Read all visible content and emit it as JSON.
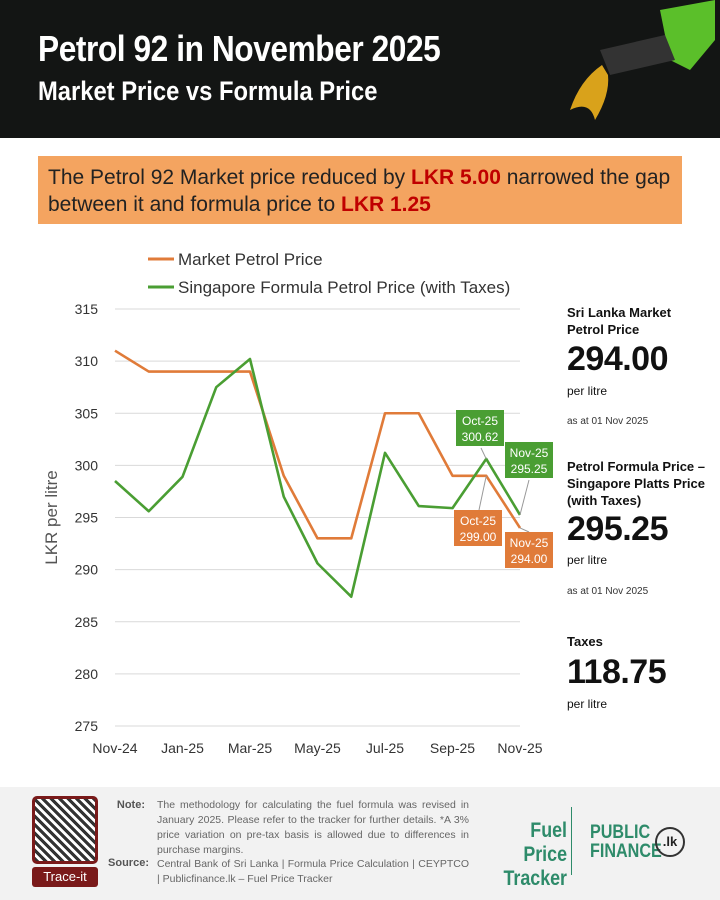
{
  "header": {
    "title": "Petrol 92 in November 2025",
    "subtitle": "Market Price vs Formula Price"
  },
  "banner": {
    "pre": "The Petrol 92 Market price reduced by ",
    "amount1": "LKR 5.00",
    "mid": " narrowed the gap between it and formula price to ",
    "amount2": "LKR 1.25"
  },
  "chart_data": {
    "type": "line",
    "ylabel": "LKR per litre",
    "ylim": [
      275,
      315
    ],
    "yticks": [
      275,
      280,
      285,
      290,
      295,
      300,
      305,
      310,
      315
    ],
    "grid": true,
    "legend_position": "top",
    "categories": [
      "Nov-24",
      "Dec-24",
      "Jan-25",
      "Feb-25",
      "Mar-25",
      "Apr-25",
      "May-25",
      "Jun-25",
      "Jul-25",
      "Aug-25",
      "Sep-25",
      "Oct-25",
      "Nov-25"
    ],
    "xtick_labels": [
      "Nov-24",
      "Jan-25",
      "Mar-25",
      "May-25",
      "Jul-25",
      "Sep-25",
      "Nov-25"
    ],
    "series": [
      {
        "name": "Market Petrol Price",
        "color": "#e07b39",
        "values": [
          311,
          309,
          309,
          309,
          309,
          299,
          293,
          293,
          305,
          305,
          299,
          299,
          294
        ]
      },
      {
        "name": "Singapore Formula Petrol Price (with Taxes)",
        "color": "#4a9e33",
        "values": [
          298.5,
          295.6,
          298.9,
          307.5,
          310.2,
          297,
          290.6,
          287.4,
          301.2,
          296.1,
          295.9,
          300.62,
          295.25
        ]
      }
    ],
    "annotations": [
      {
        "series": 1,
        "label": "Oct-25",
        "value": "300.62"
      },
      {
        "series": 1,
        "label": "Nov-25",
        "value": "295.25"
      },
      {
        "series": 0,
        "label": "Oct-25",
        "value": "299.00"
      },
      {
        "series": 0,
        "label": "Nov-25",
        "value": "294.00"
      }
    ]
  },
  "side": {
    "market_label": "Sri Lanka  Market Petrol Price",
    "market_value": "294.00",
    "market_unit": "per litre",
    "market_date": "as at 01 Nov 2025",
    "formula_label": "Petrol Formula Price – Singapore Platts Price (with Taxes)",
    "formula_value": "295.25",
    "formula_unit": "per litre",
    "formula_date": "as at 01 Nov 2025",
    "taxes_label": "Taxes",
    "taxes_value": "118.75",
    "taxes_unit": "per litre"
  },
  "footer": {
    "qr_label": "Trace-it",
    "note_label": "Note:",
    "note": "The methodology for calculating the fuel formula was revised in January 2025. Please refer to the tracker for further details. *A 3% price variation on pre-tax basis is allowed due to differences in purchase margins.",
    "source_label": "Source:",
    "source": "Central Bank of Sri Lanka | Formula Price Calculation | CEYPTCO | Publicfinance.lk – Fuel Price Tracker",
    "logo1": "Fuel Price Tracker",
    "logo2": "PUBLIC FINANCE",
    "logo2_badge": ".lk"
  }
}
